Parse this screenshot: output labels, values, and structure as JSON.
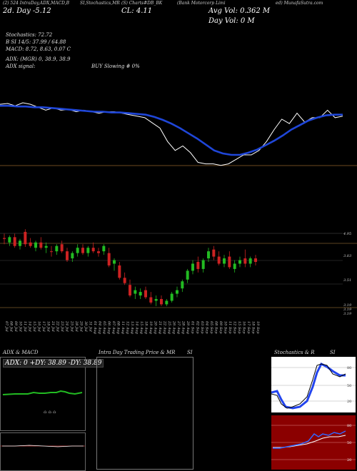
{
  "header": {
    "crumbs": [
      "(2) 524 IntraDay,ADX,MACD,B",
      "SI,Stochastics,MR",
      "(S) Charts#DB_BK",
      "(Bank Motorcorp Limi",
      "ed) MunafaSutra.com"
    ],
    "day_change": "2d. Day -5.12",
    "close": "CL: 4.11",
    "avg_vol": "Avg Vol: 0.362  M",
    "day_vol": "Day Vol: 0  M"
  },
  "indicators": {
    "stoch": "Stochastics: 72.72",
    "rsi": "B                   SI 14/5: 37.99 / 64.88",
    "macd": "MACD: 8.72,  8.63,  0.07 C",
    "adx": "ADX:                         (MGR) 0,  38.9,  38.9",
    "adx_signal": "ADX  signal:",
    "signal_text": "BUY Slowing # 0%"
  },
  "price_axis": [
    "4.95",
    "3.83",
    "3.51",
    "3.19",
    "3.19",
    "3.19"
  ],
  "dates": [
    "07 Jul",
    "08 Jul",
    "09 Jul",
    "10 Jul",
    "11 Jul",
    "14 Jul",
    "15 Jul",
    "16 Jul",
    "17 Jul",
    "18 Jul",
    "21 Jul",
    "22 Jul",
    "23 Jul",
    "24 Jul",
    "25 Jul",
    "28 Jul",
    "29 Jul",
    "30 Jul",
    "31 Jul",
    "01 Aug",
    "04 Aug",
    "05 Aug",
    "06 Aug",
    "07 Aug",
    "08 Aug",
    "11 Aug",
    "12 Aug",
    "13 Aug",
    "14 Aug",
    "15 Aug",
    "18 Aug",
    "19 Aug",
    "20 Aug",
    "21 Aug",
    "22 Aug",
    "25 Aug",
    "26 Aug",
    "27 Aug",
    "28 Aug",
    "29 Aug",
    "01 Sep",
    "02 Sep",
    "03 Sep",
    "04 Sep",
    "05 Sep",
    "08 Sep",
    "09 Sep",
    "10 Sep",
    "11 Sep",
    "12 Sep",
    "15 Sep",
    "16 Sep",
    "17 Sep",
    "18 Sep",
    "19 Sep"
  ],
  "panels": {
    "adx_title": "ADX  & MACD",
    "adx_box": "ADX: 0  +DY: 38.89  -DY: 38.89",
    "intraday_title": "Intra  Day Trading Price  & MR",
    "intraday_si": "SI",
    "stoch_title": "Stochastics & R",
    "stoch_si": "SI",
    "stoch_scale": [
      "80",
      "50",
      "20"
    ],
    "rsi_scale": [
      "80",
      "50",
      "20"
    ]
  },
  "colors": {
    "ma": "#1f46d8",
    "up": "#22bb22",
    "down": "#cc2222",
    "rsi_bg": "#8b0000",
    "stoch_blue": "#2244ee"
  },
  "chart_data": [
    {
      "type": "line",
      "title": "Price vs moving average",
      "series": [
        {
          "name": "",
          "values": [
            4.2,
            4.21,
            4.18,
            4.22,
            4.2,
            4.16,
            4.12,
            4.15,
            4.12,
            4.13,
            4.1,
            4.12,
            4.1,
            4.08,
            4.1,
            4.1,
            4.08,
            4.06,
            4.04,
            4.02,
            3.95,
            3.88,
            3.7,
            3.58,
            3.64,
            3.55,
            3.42,
            3.4,
            3.4,
            3.38,
            3.4,
            3.46,
            3.52,
            3.52,
            3.58,
            3.7,
            3.86,
            4.0,
            3.94,
            4.08,
            3.96,
            4.02,
            4.02,
            4.12,
            4.02,
            4.04
          ]
        },
        {
          "name": "",
          "values": [
            4.18,
            4.18,
            4.17,
            4.17,
            4.16,
            4.16,
            4.15,
            4.14,
            4.13,
            4.12,
            4.11,
            4.1,
            4.1,
            4.09,
            4.09,
            4.08,
            4.07,
            4.06,
            4.03,
            3.99,
            3.94,
            3.88,
            3.81,
            3.74,
            3.66,
            3.58,
            3.54,
            3.52,
            3.52,
            3.55,
            3.59,
            3.65,
            3.71,
            3.78,
            3.86,
            3.92,
            3.98,
            4.02,
            4.05,
            4.06,
            4.06
          ]
        }
      ]
    },
    {
      "type": "bar",
      "title": "Daily candles",
      "ylim": [
        3.05,
        4.1
      ],
      "candles": [
        {
          "o": 3.95,
          "h": 4.0,
          "l": 3.88,
          "c": 3.94,
          "d": "down"
        },
        {
          "o": 3.9,
          "h": 3.98,
          "l": 3.86,
          "c": 3.96,
          "d": "up"
        },
        {
          "o": 3.96,
          "h": 4.0,
          "l": 3.84,
          "c": 3.86,
          "d": "down"
        },
        {
          "o": 3.86,
          "h": 3.94,
          "l": 3.82,
          "c": 3.92,
          "d": "up"
        },
        {
          "o": 4.02,
          "h": 4.05,
          "l": 3.85,
          "c": 3.88,
          "d": "down"
        },
        {
          "o": 3.9,
          "h": 3.95,
          "l": 3.84,
          "c": 3.86,
          "d": "down"
        },
        {
          "o": 3.84,
          "h": 3.92,
          "l": 3.8,
          "c": 3.9,
          "d": "up"
        },
        {
          "o": 3.9,
          "h": 3.96,
          "l": 3.82,
          "c": 3.84,
          "d": "down"
        },
        {
          "o": 3.84,
          "h": 3.9,
          "l": 3.78,
          "c": 3.86,
          "d": "up"
        },
        {
          "o": 3.8,
          "h": 3.86,
          "l": 3.74,
          "c": 3.8,
          "d": "down"
        },
        {
          "o": 3.8,
          "h": 3.88,
          "l": 3.76,
          "c": 3.86,
          "d": "up"
        },
        {
          "o": 3.88,
          "h": 3.92,
          "l": 3.78,
          "c": 3.8,
          "d": "down"
        },
        {
          "o": 3.8,
          "h": 3.84,
          "l": 3.68,
          "c": 3.7,
          "d": "down"
        },
        {
          "o": 3.72,
          "h": 3.8,
          "l": 3.68,
          "c": 3.78,
          "d": "up"
        },
        {
          "o": 3.78,
          "h": 3.88,
          "l": 3.74,
          "c": 3.84,
          "d": "up"
        },
        {
          "o": 3.84,
          "h": 3.88,
          "l": 3.76,
          "c": 3.78,
          "d": "down"
        },
        {
          "o": 3.78,
          "h": 3.86,
          "l": 3.74,
          "c": 3.84,
          "d": "up"
        },
        {
          "o": 3.84,
          "h": 3.9,
          "l": 3.78,
          "c": 3.8,
          "d": "down"
        },
        {
          "o": 3.8,
          "h": 3.84,
          "l": 3.74,
          "c": 3.78,
          "d": "down"
        },
        {
          "o": 3.8,
          "h": 3.88,
          "l": 3.76,
          "c": 3.86,
          "d": "up"
        },
        {
          "o": 3.78,
          "h": 3.84,
          "l": 3.62,
          "c": 3.64,
          "d": "down"
        },
        {
          "o": 3.66,
          "h": 3.72,
          "l": 3.58,
          "c": 3.7,
          "d": "up"
        },
        {
          "o": 3.64,
          "h": 3.68,
          "l": 3.48,
          "c": 3.5,
          "d": "down"
        },
        {
          "o": 3.5,
          "h": 3.56,
          "l": 3.42,
          "c": 3.44,
          "d": "down"
        },
        {
          "o": 3.42,
          "h": 3.48,
          "l": 3.28,
          "c": 3.3,
          "d": "down"
        },
        {
          "o": 3.32,
          "h": 3.4,
          "l": 3.26,
          "c": 3.36,
          "d": "up"
        },
        {
          "o": 3.3,
          "h": 3.38,
          "l": 3.26,
          "c": 3.34,
          "d": "up"
        },
        {
          "o": 3.36,
          "h": 3.4,
          "l": 3.26,
          "c": 3.28,
          "d": "down"
        },
        {
          "o": 3.28,
          "h": 3.34,
          "l": 3.2,
          "c": 3.22,
          "d": "down"
        },
        {
          "o": 3.24,
          "h": 3.3,
          "l": 3.18,
          "c": 3.26,
          "d": "up"
        },
        {
          "o": 3.26,
          "h": 3.3,
          "l": 3.18,
          "c": 3.2,
          "d": "down"
        },
        {
          "o": 3.2,
          "h": 3.26,
          "l": 3.18,
          "c": 3.24,
          "d": "up"
        },
        {
          "o": 3.24,
          "h": 3.34,
          "l": 3.22,
          "c": 3.32,
          "d": "up"
        },
        {
          "o": 3.32,
          "h": 3.4,
          "l": 3.28,
          "c": 3.36,
          "d": "up"
        },
        {
          "o": 3.38,
          "h": 3.48,
          "l": 3.34,
          "c": 3.46,
          "d": "up"
        },
        {
          "o": 3.48,
          "h": 3.6,
          "l": 3.44,
          "c": 3.58,
          "d": "up"
        },
        {
          "o": 3.58,
          "h": 3.7,
          "l": 3.54,
          "c": 3.66,
          "d": "up"
        },
        {
          "o": 3.68,
          "h": 3.74,
          "l": 3.56,
          "c": 3.6,
          "d": "down"
        },
        {
          "o": 3.6,
          "h": 3.72,
          "l": 3.56,
          "c": 3.7,
          "d": "up"
        },
        {
          "o": 3.72,
          "h": 3.84,
          "l": 3.68,
          "c": 3.8,
          "d": "up"
        },
        {
          "o": 3.82,
          "h": 3.86,
          "l": 3.7,
          "c": 3.74,
          "d": "down"
        },
        {
          "o": 3.74,
          "h": 3.8,
          "l": 3.64,
          "c": 3.66,
          "d": "down"
        },
        {
          "o": 3.66,
          "h": 3.76,
          "l": 3.62,
          "c": 3.72,
          "d": "up"
        },
        {
          "o": 3.74,
          "h": 3.8,
          "l": 3.6,
          "c": 3.62,
          "d": "down"
        },
        {
          "o": 3.6,
          "h": 3.7,
          "l": 3.56,
          "c": 3.66,
          "d": "up"
        },
        {
          "o": 3.66,
          "h": 3.74,
          "l": 3.62,
          "c": 3.7,
          "d": "up"
        },
        {
          "o": 3.72,
          "h": 3.82,
          "l": 3.62,
          "c": 3.66,
          "d": "down"
        },
        {
          "o": 3.66,
          "h": 3.74,
          "l": 3.62,
          "c": 3.72,
          "d": "up"
        },
        {
          "o": 3.72,
          "h": 3.76,
          "l": 3.64,
          "c": 3.68,
          "d": "down"
        }
      ]
    }
  ]
}
